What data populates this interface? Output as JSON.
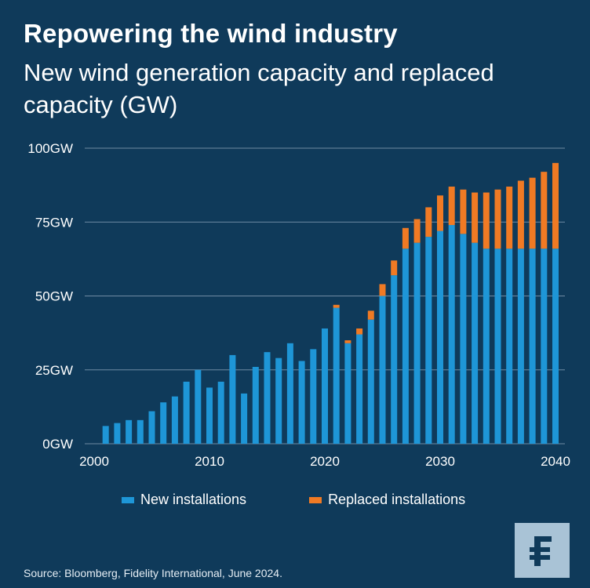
{
  "title": "Repowering the wind industry",
  "subtitle": "New wind generation capacity and replaced capacity (GW)",
  "source": "Source: Bloomberg, Fidelity International, June 2024.",
  "colors": {
    "background": "#0f3a5a",
    "new": "#1e96d7",
    "replaced": "#f07a24",
    "logo_bg": "#a9c3d6",
    "logo_fg": "#0f3a5a"
  },
  "logo": {
    "icon": "fidelity-f-logo-icon"
  },
  "chart_data": {
    "type": "bar",
    "stacked": true,
    "x": [
      2001,
      2002,
      2003,
      2004,
      2005,
      2006,
      2007,
      2008,
      2009,
      2010,
      2011,
      2012,
      2013,
      2014,
      2015,
      2016,
      2017,
      2018,
      2019,
      2020,
      2021,
      2022,
      2023,
      2024,
      2025,
      2026,
      2027,
      2028,
      2029,
      2030,
      2031,
      2032,
      2033,
      2034,
      2035,
      2036,
      2037,
      2038,
      2039,
      2040
    ],
    "series": [
      {
        "name": "New installations",
        "color": "#1e96d7",
        "values": [
          6,
          7,
          8,
          8,
          11,
          14,
          16,
          21,
          25,
          19,
          21,
          30,
          17,
          26,
          31,
          29,
          34,
          28,
          32,
          39,
          46,
          34,
          37,
          42,
          50,
          57,
          66,
          68,
          70,
          72,
          74,
          71,
          68,
          66,
          66,
          66,
          66,
          66,
          66,
          66
        ]
      },
      {
        "name": "Replaced installations",
        "color": "#f07a24",
        "values": [
          0,
          0,
          0,
          0,
          0,
          0,
          0,
          0,
          0,
          0,
          0,
          0,
          0,
          0,
          0,
          0,
          0,
          0,
          0,
          0,
          1,
          1,
          2,
          3,
          4,
          5,
          7,
          8,
          10,
          12,
          13,
          15,
          17,
          19,
          20,
          21,
          23,
          24,
          26,
          29
        ]
      }
    ],
    "y_ticks": [
      "0GW",
      "25GW",
      "50GW",
      "75GW",
      "100GW"
    ],
    "y_tick_values": [
      0,
      25,
      50,
      75,
      100
    ],
    "x_ticks": [
      "2000",
      "2010",
      "2020",
      "2030",
      "2040"
    ],
    "x_tick_values": [
      2000,
      2010,
      2020,
      2030,
      2040
    ],
    "xlim": [
      2000,
      2040
    ],
    "ylim": [
      0,
      100
    ],
    "grid": true,
    "legend": "bottom"
  }
}
